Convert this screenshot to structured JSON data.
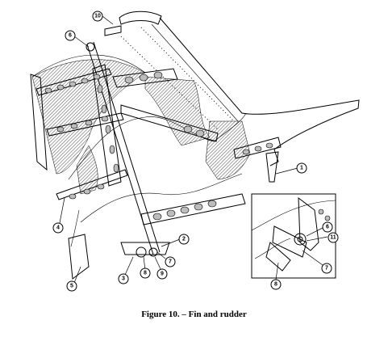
{
  "figure": {
    "caption": "Figure 10. – Fin and rudder",
    "callouts": [
      "1",
      "2",
      "3",
      "4",
      "5",
      "6",
      "7",
      "8",
      "9",
      "10",
      "11"
    ],
    "inset_callouts": [
      "6",
      "7",
      "8",
      "11"
    ]
  }
}
